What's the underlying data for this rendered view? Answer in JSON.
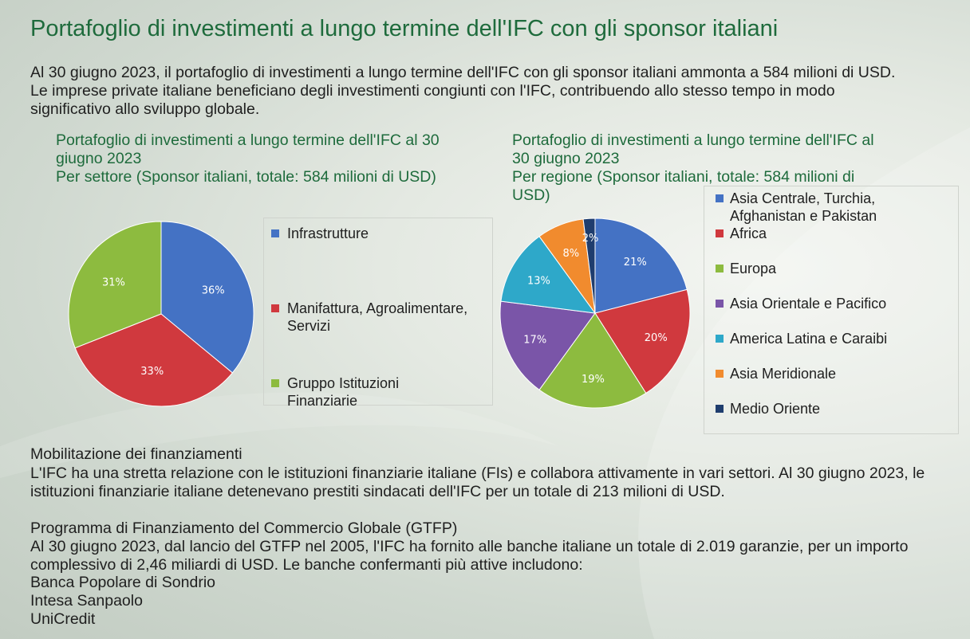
{
  "page": {
    "title": "Portafoglio di investimenti a lungo termine dell'IFC con gli sponsor italiani",
    "intro": "Al 30 giugno 2023, il portafoglio di investimenti a lungo termine dell'IFC con gli sponsor italiani ammonta a 584 milioni di USD. Le imprese private italiane beneficiano degli investimenti congiunti con l'IFC, contribuendo allo stesso tempo in modo significativo allo sviluppo globale."
  },
  "chart_data": [
    {
      "type": "pie",
      "title": "Portafoglio di investimenti a lungo termine dell'IFC al 30 giugno 2023\nPer settore (Sponsor italiani, totale: 584 milioni di USD)",
      "categories": [
        "Infrastrutture",
        "Manifattura, Agroalimentare, Servizi",
        "Gruppo Istituzioni Finanziarie"
      ],
      "legend_labels": [
        "Infrastrutture",
        "Manifattura, Agroalimentare,\nServizi",
        "Gruppo Istituzioni\nFinanziarie"
      ],
      "values": [
        36,
        33,
        31
      ],
      "labels": [
        "36%",
        "33%",
        "31%"
      ],
      "colors": [
        "#4472c4",
        "#d0393e",
        "#8dbb3f"
      ],
      "legend_position": "right"
    },
    {
      "type": "pie",
      "title": "Portafoglio di investimenti a lungo termine dell'IFC al\n30 giugno 2023\nPer regione (Sponsor italiani, totale: 584 milioni di\nUSD)",
      "categories": [
        "Asia Centrale, Turchia, Afghanistan e Pakistan",
        "Africa",
        "Europa",
        "Asia Orientale e Pacifico",
        "America Latina e Caraibi",
        "Asia Meridionale",
        "Medio Oriente"
      ],
      "legend_labels": [
        "Asia Centrale, Turchia,\nAfghanistan e Pakistan",
        "Africa",
        "Europa",
        "Asia Orientale e Pacifico",
        "America Latina e Caraibi",
        "Asia Meridionale",
        "Medio Oriente"
      ],
      "values": [
        21,
        20,
        19,
        17,
        13,
        8,
        2
      ],
      "labels": [
        "21%",
        "20%",
        "19%",
        "17%",
        "13%",
        "8%",
        "2%"
      ],
      "colors": [
        "#4472c4",
        "#d0393e",
        "#8dbb3f",
        "#7a55a8",
        "#2ea8c9",
        "#f18b2e",
        "#1f3d6e"
      ],
      "legend_position": "right"
    }
  ],
  "mobilization": {
    "heading": "Mobilitazione dei finanziamenti",
    "text": "L'IFC ha una stretta relazione con le istituzioni finanziarie italiane (FIs) e collabora attivamente in vari settori. Al 30 giugno 2023, le istituzioni finanziarie italiane detenevano prestiti sindacati dell'IFC per un totale di 213 milioni di USD."
  },
  "gtfp": {
    "heading": "Programma di Finanziamento del Commercio Globale (GTFP)",
    "text": "Al 30 giugno 2023, dal lancio del GTFP nel 2005, l'IFC ha fornito alle banche italiane un totale di 2.019 garanzie, per un importo complessivo di 2,46 miliardi di USD. Le banche confermanti più attive includono:",
    "banks": [
      "Banca Popolare di Sondrio",
      "Intesa Sanpaolo",
      "UniCredit"
    ]
  }
}
